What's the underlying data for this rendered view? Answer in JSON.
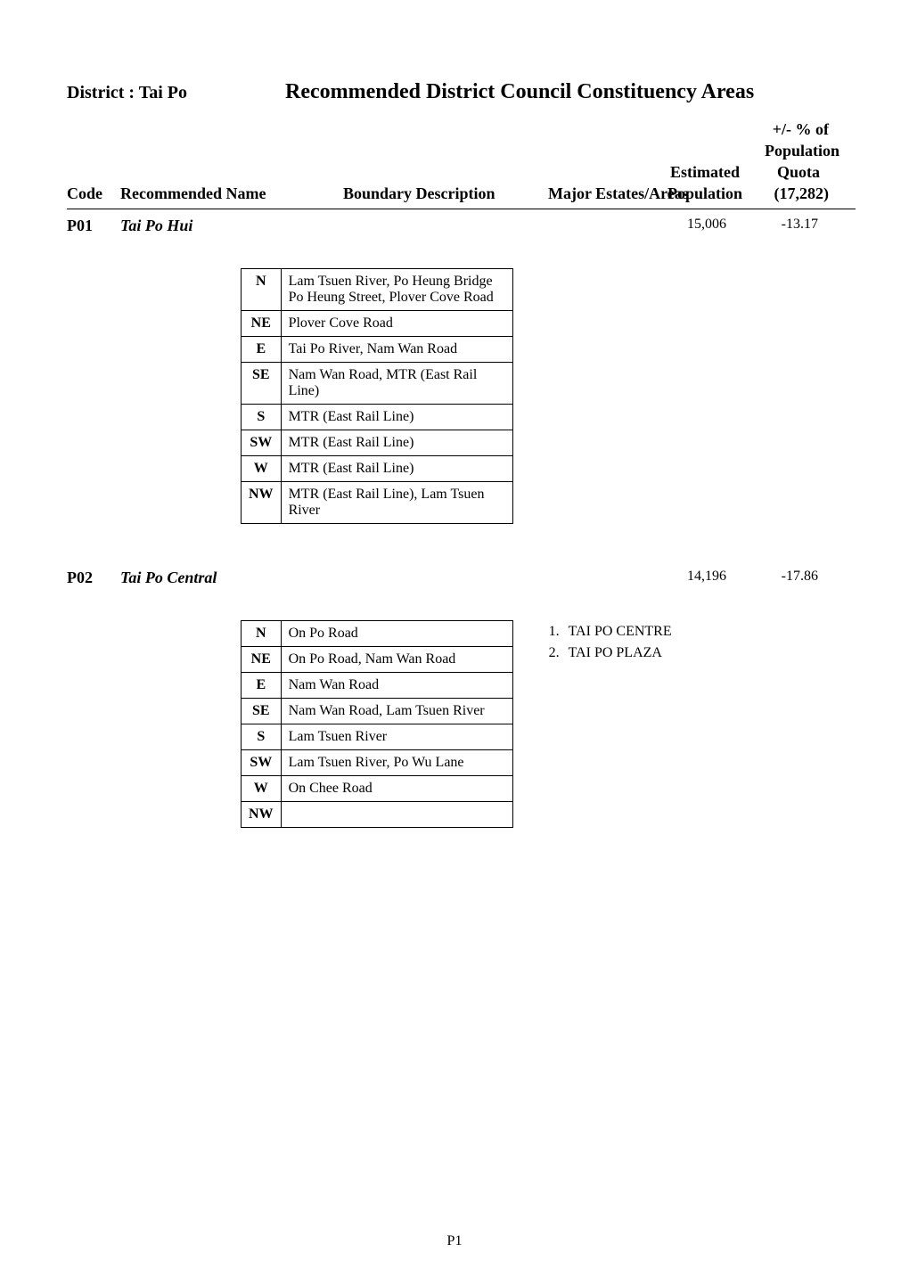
{
  "district_label": "District : Tai Po",
  "main_title": "Recommended District Council Constituency Areas",
  "headers": {
    "pct_of": "+/- % of",
    "population": "Population",
    "estimated": "Estimated",
    "quota": "Quota",
    "code": "Code",
    "name": "Recommended Name",
    "boundary": "Boundary Description",
    "estates": "Major Estates/Areas",
    "estpop": "Population",
    "quotaval": "(17,282)"
  },
  "constituencies": [
    {
      "code": "P01",
      "name": "Tai Po Hui",
      "population": "15,006",
      "pct": "-13.17",
      "boundary": [
        {
          "dir": "N",
          "desc": "Lam Tsuen River, Po Heung Bridge\nPo Heung Street, Plover Cove Road"
        },
        {
          "dir": "NE",
          "desc": "Plover Cove Road"
        },
        {
          "dir": "E",
          "desc": "Tai Po River, Nam Wan Road"
        },
        {
          "dir": "SE",
          "desc": "Nam Wan Road, MTR (East Rail Line)"
        },
        {
          "dir": "S",
          "desc": "MTR (East Rail Line)"
        },
        {
          "dir": "SW",
          "desc": "MTR (East Rail Line)"
        },
        {
          "dir": "W",
          "desc": "MTR (East Rail Line)"
        },
        {
          "dir": "NW",
          "desc": "MTR (East Rail Line), Lam Tsuen River"
        }
      ],
      "estates": []
    },
    {
      "code": "P02",
      "name": "Tai Po Central",
      "population": "14,196",
      "pct": "-17.86",
      "boundary": [
        {
          "dir": "N",
          "desc": "On Po Road"
        },
        {
          "dir": "NE",
          "desc": "On Po Road, Nam Wan Road"
        },
        {
          "dir": "E",
          "desc": "Nam Wan Road"
        },
        {
          "dir": "SE",
          "desc": "Nam Wan Road, Lam Tsuen River"
        },
        {
          "dir": "S",
          "desc": "Lam Tsuen River"
        },
        {
          "dir": "SW",
          "desc": "Lam Tsuen River, Po Wu Lane"
        },
        {
          "dir": "W",
          "desc": "On Chee Road"
        },
        {
          "dir": "NW",
          "desc": ""
        }
      ],
      "estates": [
        {
          "num": "1.",
          "name": "TAI PO CENTRE"
        },
        {
          "num": "2.",
          "name": "TAI PO PLAZA"
        }
      ]
    }
  ],
  "page_number": "P1",
  "styling": {
    "background_color": "#ffffff",
    "text_color": "#000000",
    "border_color": "#000000",
    "font_family": "Times New Roman",
    "title_fontsize": 24,
    "header_fontsize": 18,
    "body_fontsize": 16
  }
}
